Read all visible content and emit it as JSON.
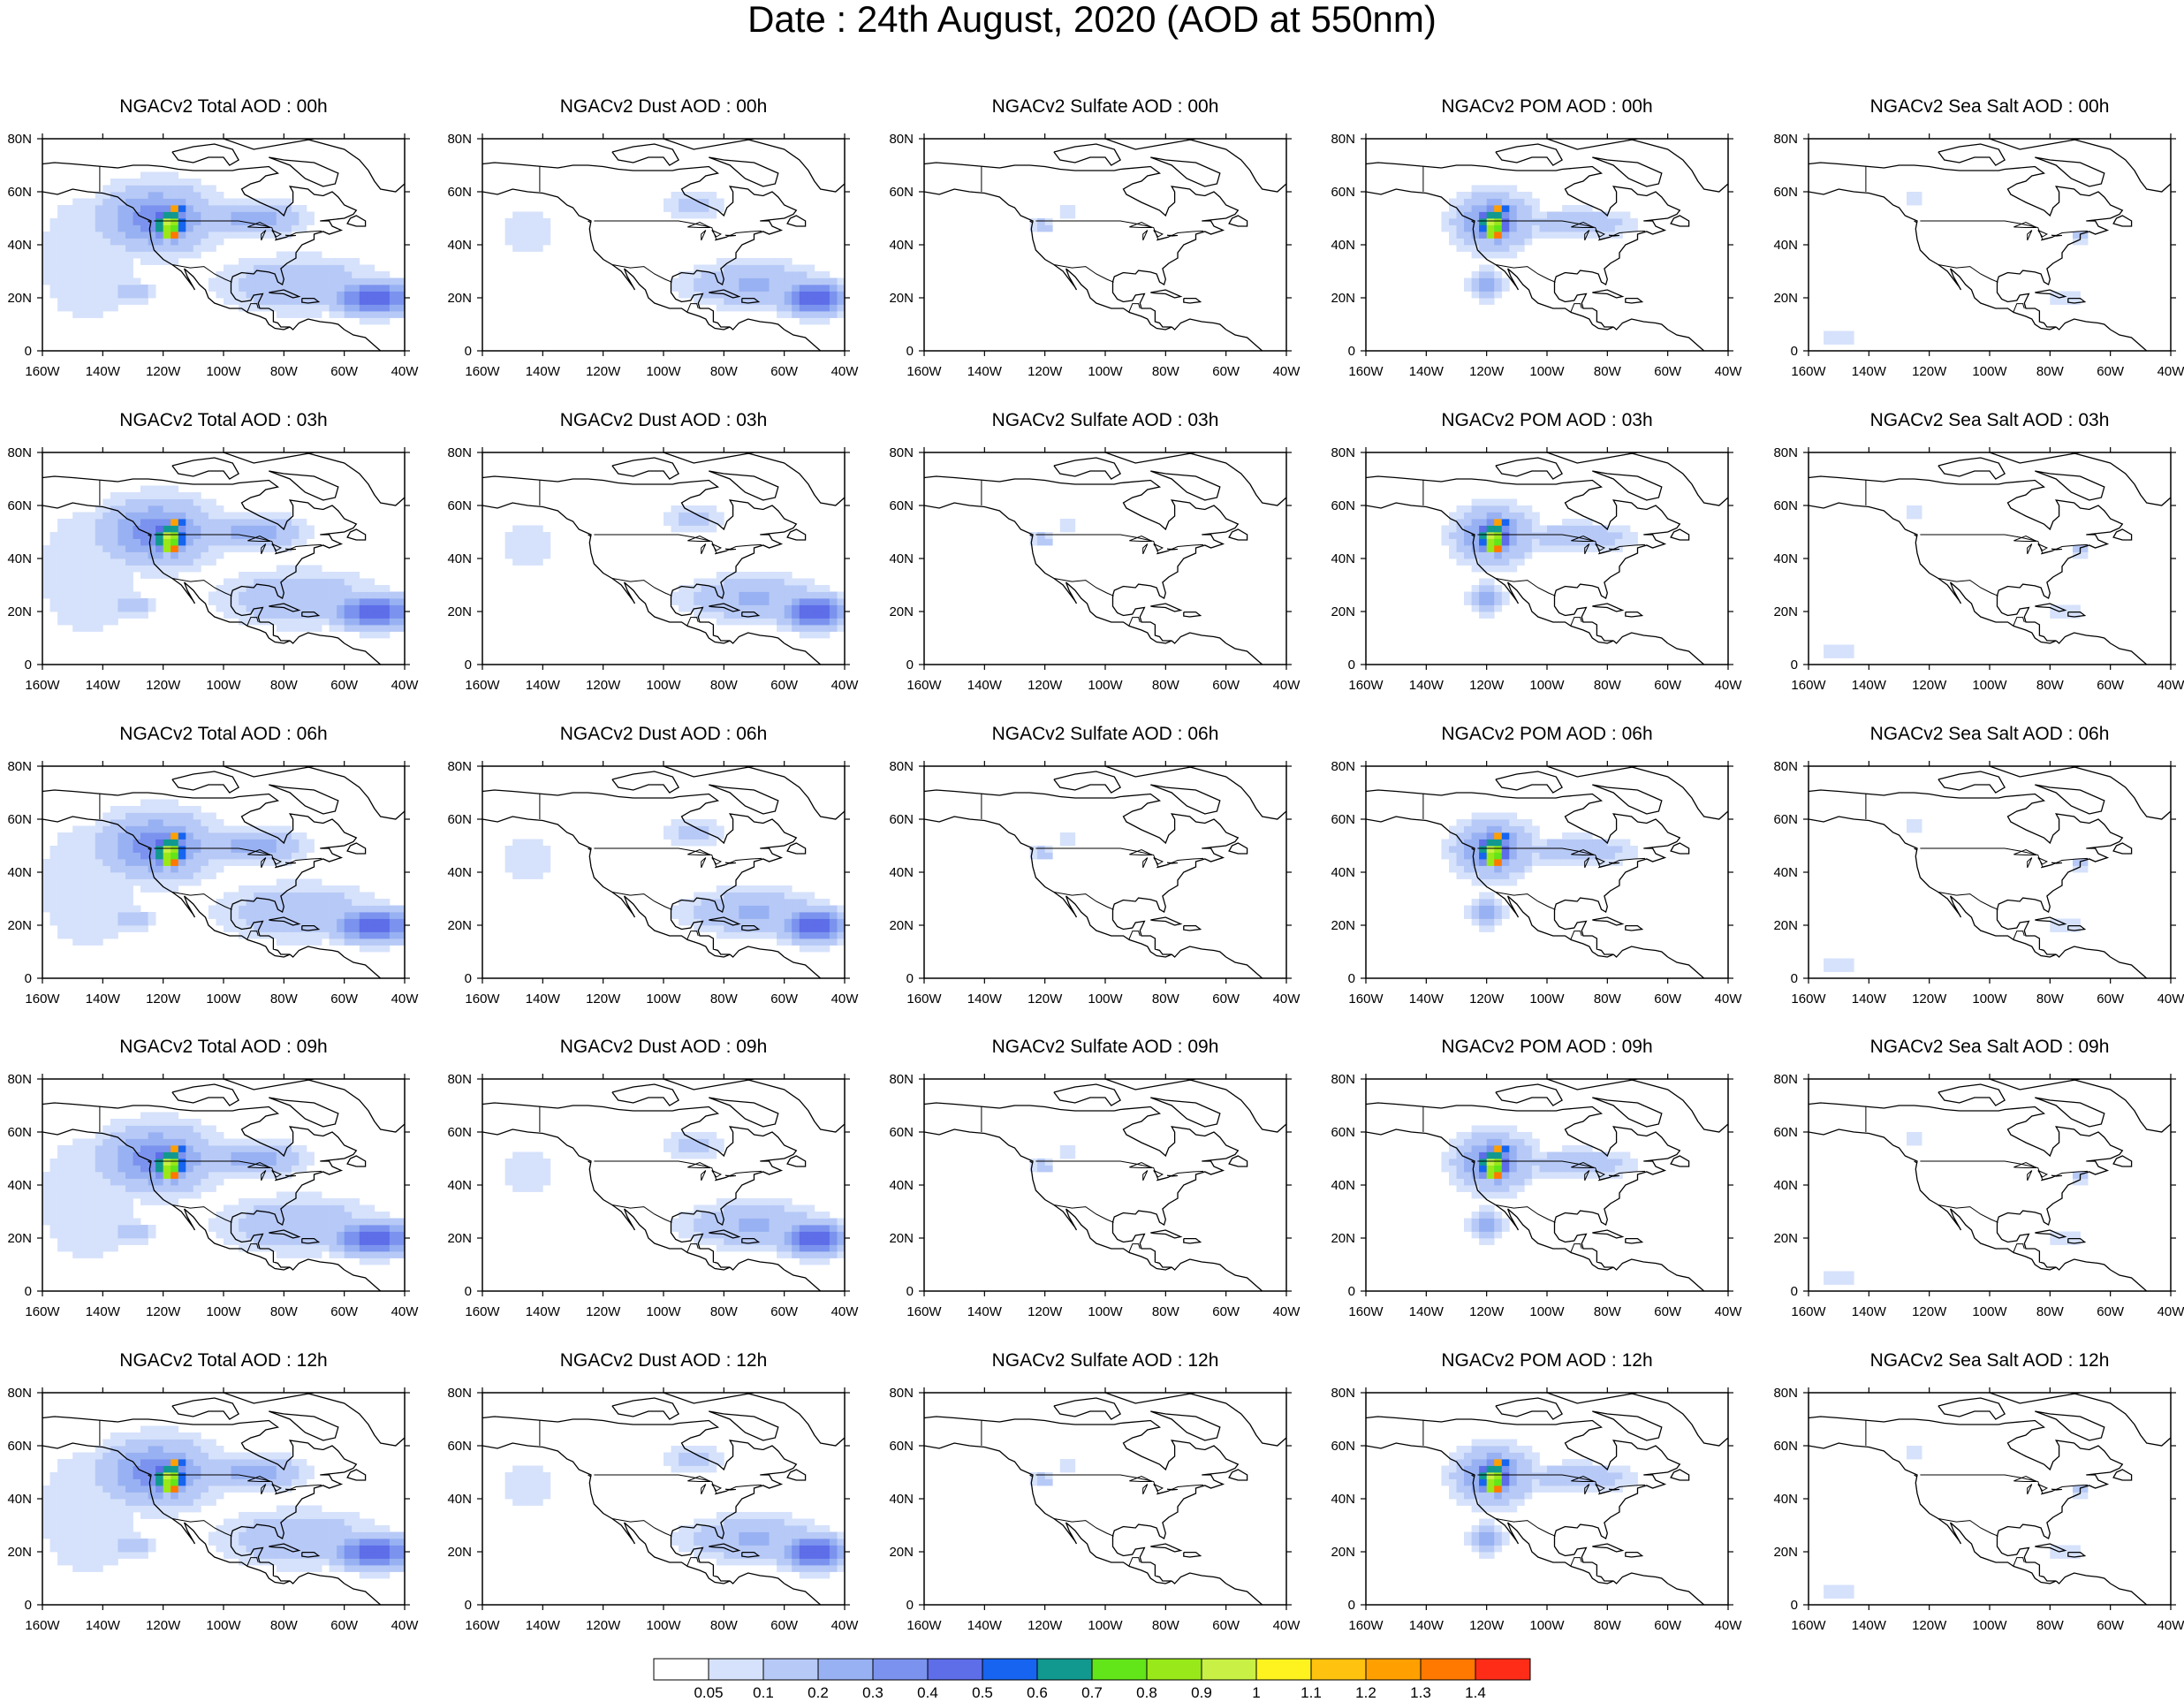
{
  "title": "Date : 24th August, 2020 (AOD at 550nm)",
  "map": {
    "lon_range": [
      -160,
      -40
    ],
    "lat_range": [
      0,
      80
    ],
    "lon_ticks": [
      "160W",
      "140W",
      "120W",
      "100W",
      "80W",
      "60W",
      "40W"
    ],
    "lat_ticks": [
      "0",
      "20N",
      "40N",
      "60N",
      "80N"
    ]
  },
  "panel_titles": [
    [
      "NGACv2 Total AOD : 00h",
      "NGACv2 Dust AOD : 00h",
      "NGACv2 Sulfate AOD : 00h",
      "NGACv2 POM AOD : 00h",
      "NGACv2 Sea Salt AOD : 00h"
    ],
    [
      "NGACv2 Total AOD : 03h",
      "NGACv2 Dust AOD : 03h",
      "NGACv2 Sulfate AOD : 03h",
      "NGACv2 POM AOD : 03h",
      "NGACv2 Sea Salt AOD : 03h"
    ],
    [
      "NGACv2 Total AOD : 06h",
      "NGACv2 Dust AOD : 06h",
      "NGACv2 Sulfate AOD : 06h",
      "NGACv2 POM AOD : 06h",
      "NGACv2 Sea Salt AOD : 06h"
    ],
    [
      "NGACv2 Total AOD : 09h",
      "NGACv2 Dust AOD : 09h",
      "NGACv2 Sulfate AOD : 09h",
      "NGACv2 POM AOD : 09h",
      "NGACv2 Sea Salt  AOD : 09h"
    ],
    [
      "NGACv2 Total AOD  : 12h",
      "NGACv2 Dust AOD : 12h",
      "NGACv2 Sulfate AOD : 12h",
      "NGACv2 POM  AOD : 12h",
      "NGACv2 Sea Salt  AOD : 12h"
    ]
  ],
  "colorbar": {
    "labels": [
      "0.05",
      "0.1",
      "0.2",
      "0.3",
      "0.4",
      "0.5",
      "0.6",
      "0.7",
      "0.8",
      "0.9",
      "1",
      "1.1",
      "1.2",
      "1.3",
      "1.4"
    ],
    "colors": [
      "#ffffff",
      "#d6e2fb",
      "#b7c9f6",
      "#98b1f2",
      "#7b93ee",
      "#5e6de8",
      "#1664f0",
      "#11998f",
      "#62e519",
      "#99e81a",
      "#c8f045",
      "#fff31f",
      "#ffc20f",
      "#ffa000",
      "#ff7800",
      "#ff2d17"
    ]
  },
  "plumes": {
    "total": [
      {
        "lon": -122,
        "lat": 50,
        "v": 0.35,
        "sx": 18,
        "sy": 12
      },
      {
        "lon": -118,
        "lat": 48,
        "v": 0.95,
        "sx": 6,
        "sy": 5
      },
      {
        "lon": -117,
        "lat": 44,
        "v": 1.45,
        "sx": 2.5,
        "sy": 2
      },
      {
        "lon": -116,
        "lat": 53,
        "v": 1.45,
        "sx": 2.5,
        "sy": 2
      },
      {
        "lon": -90,
        "lat": 50,
        "v": 0.25,
        "sx": 16,
        "sy": 6
      },
      {
        "lon": -50,
        "lat": 20,
        "v": 0.5,
        "sx": 14,
        "sy": 6
      },
      {
        "lon": -75,
        "lat": 25,
        "v": 0.2,
        "sx": 25,
        "sy": 10
      },
      {
        "lon": -130,
        "lat": 22,
        "v": 0.2,
        "sx": 6,
        "sy": 4
      },
      {
        "lon": -145,
        "lat": 35,
        "v": 0.1,
        "sx": 18,
        "sy": 28
      }
    ],
    "dust": [
      {
        "lon": -50,
        "lat": 20,
        "v": 0.5,
        "sx": 12,
        "sy": 6
      },
      {
        "lon": -70,
        "lat": 25,
        "v": 0.22,
        "sx": 22,
        "sy": 8
      },
      {
        "lon": -145,
        "lat": 45,
        "v": 0.1,
        "sx": 10,
        "sy": 10
      },
      {
        "lon": -90,
        "lat": 55,
        "v": 0.12,
        "sx": 12,
        "sy": 6
      }
    ],
    "sulfate": [
      {
        "lon": -121,
        "lat": 47,
        "v": 0.15,
        "sx": 4,
        "sy": 3
      },
      {
        "lon": -112,
        "lat": 52,
        "v": 0.1,
        "sx": 3,
        "sy": 3
      }
    ],
    "pom": [
      {
        "lon": -118,
        "lat": 49,
        "v": 0.35,
        "sx": 12,
        "sy": 10
      },
      {
        "lon": -118,
        "lat": 48,
        "v": 0.95,
        "sx": 5,
        "sy": 5
      },
      {
        "lon": -117,
        "lat": 44,
        "v": 1.45,
        "sx": 2.5,
        "sy": 2
      },
      {
        "lon": -116,
        "lat": 53,
        "v": 1.45,
        "sx": 2.5,
        "sy": 2
      },
      {
        "lon": -90,
        "lat": 48,
        "v": 0.2,
        "sx": 18,
        "sy": 5
      },
      {
        "lon": -120,
        "lat": 25,
        "v": 0.25,
        "sx": 6,
        "sy": 5
      }
    ],
    "seasalt": [
      {
        "lon": -70,
        "lat": 43,
        "v": 0.12,
        "sx": 4,
        "sy": 3
      },
      {
        "lon": -75,
        "lat": 20,
        "v": 0.11,
        "sx": 6,
        "sy": 4
      },
      {
        "lon": -150,
        "lat": 5,
        "v": 0.1,
        "sx": 8,
        "sy": 3
      },
      {
        "lon": -125,
        "lat": 58,
        "v": 0.1,
        "sx": 3,
        "sy": 3
      }
    ]
  },
  "coastline": [
    [
      [
        -160,
        60
      ],
      [
        -155,
        59
      ],
      [
        -150,
        61
      ],
      [
        -145,
        60
      ],
      [
        -140,
        59.5
      ],
      [
        -135,
        58
      ],
      [
        -132,
        55
      ],
      [
        -130,
        54
      ],
      [
        -128,
        51
      ],
      [
        -124,
        49
      ],
      [
        -124.5,
        46
      ],
      [
        -124,
        42
      ],
      [
        -123,
        38
      ],
      [
        -120,
        34.5
      ],
      [
        -117,
        32.5
      ],
      [
        -114,
        30
      ],
      [
        -112,
        27
      ],
      [
        -110,
        24
      ],
      [
        -109.5,
        23
      ],
      [
        -112,
        28
      ],
      [
        -113,
        31
      ],
      [
        -110,
        28
      ],
      [
        -108,
        25
      ],
      [
        -106,
        23
      ],
      [
        -105,
        20
      ],
      [
        -103,
        18
      ],
      [
        -98,
        16
      ],
      [
        -94,
        16
      ],
      [
        -92,
        14.5
      ],
      [
        -88,
        13
      ],
      [
        -86,
        12
      ],
      [
        -85,
        10
      ],
      [
        -83,
        8.5
      ],
      [
        -80,
        8
      ],
      [
        -78,
        9
      ]
    ],
    [
      [
        -78,
        9
      ],
      [
        -77,
        8
      ],
      [
        -75,
        10.5
      ],
      [
        -72,
        12
      ],
      [
        -68,
        11
      ],
      [
        -64,
        10.5
      ],
      [
        -62,
        10
      ],
      [
        -60,
        8
      ]
    ],
    [
      [
        -60,
        8
      ],
      [
        -57,
        6
      ],
      [
        -53,
        5
      ],
      [
        -50,
        2
      ],
      [
        -48,
        0
      ]
    ],
    [
      [
        -78,
        9
      ],
      [
        -81,
        9
      ],
      [
        -82,
        10.5
      ],
      [
        -83.5,
        11
      ],
      [
        -83.5,
        15
      ],
      [
        -85,
        16
      ],
      [
        -88,
        16
      ],
      [
        -88.5,
        18
      ],
      [
        -87,
        21.5
      ],
      [
        -90,
        21
      ],
      [
        -91,
        19
      ],
      [
        -94,
        18.5
      ],
      [
        -96,
        19.5
      ],
      [
        -97.5,
        22
      ],
      [
        -97.5,
        26
      ],
      [
        -97,
        28
      ],
      [
        -94,
        29.5
      ],
      [
        -90,
        29
      ],
      [
        -89,
        30.3
      ],
      [
        -85,
        29.7
      ],
      [
        -83,
        29
      ],
      [
        -82,
        26
      ],
      [
        -80.5,
        25
      ],
      [
        -80,
        27
      ],
      [
        -81,
        31
      ],
      [
        -79,
        33
      ],
      [
        -76,
        35
      ],
      [
        -76,
        37
      ],
      [
        -74,
        40
      ],
      [
        -71,
        41.5
      ],
      [
        -70,
        42
      ],
      [
        -70,
        44
      ],
      [
        -67,
        45
      ],
      [
        -65,
        44
      ],
      [
        -61,
        45.5
      ],
      [
        -64,
        47
      ],
      [
        -65,
        49
      ],
      [
        -68,
        49
      ],
      [
        -60,
        50
      ],
      [
        -57,
        51.5
      ],
      [
        -56,
        53
      ],
      [
        -60,
        55
      ],
      [
        -62,
        58
      ],
      [
        -64,
        60
      ],
      [
        -67,
        58.5
      ],
      [
        -70,
        59
      ],
      [
        -72,
        61
      ],
      [
        -78,
        62
      ],
      [
        -77,
        60
      ],
      [
        -77,
        56
      ],
      [
        -79,
        54
      ],
      [
        -80,
        51
      ],
      [
        -82,
        53
      ],
      [
        -88,
        56
      ],
      [
        -93,
        59
      ],
      [
        -94,
        61
      ],
      [
        -91,
        63
      ],
      [
        -88,
        64
      ],
      [
        -86,
        66
      ],
      [
        -82,
        67
      ],
      [
        -85,
        69.5
      ],
      [
        -95,
        68.5
      ],
      [
        -97,
        68
      ],
      [
        -105,
        68
      ],
      [
        -110,
        68
      ],
      [
        -115,
        68.5
      ],
      [
        -120,
        69.5
      ],
      [
        -125,
        70
      ],
      [
        -130,
        70
      ],
      [
        -135,
        69
      ],
      [
        -140,
        69.5
      ],
      [
        -145,
        70
      ],
      [
        -150,
        70.5
      ],
      [
        -156,
        71
      ],
      [
        -160,
        70.5
      ]
    ],
    [
      [
        -85,
        73
      ],
      [
        -80,
        72
      ],
      [
        -70,
        71
      ],
      [
        -62,
        67
      ],
      [
        -63,
        63
      ],
      [
        -67,
        62
      ],
      [
        -73,
        65
      ],
      [
        -78,
        70
      ],
      [
        -85,
        73
      ]
    ],
    [
      [
        -73,
        80
      ],
      [
        -60,
        82
      ],
      [
        -40,
        83
      ]
    ],
    [
      [
        -73,
        80
      ],
      [
        -60,
        76
      ],
      [
        -55,
        72
      ],
      [
        -52,
        68
      ],
      [
        -50,
        64
      ],
      [
        -48,
        61
      ],
      [
        -43,
        60
      ],
      [
        -40,
        63
      ]
    ],
    [
      [
        -85,
        22
      ],
      [
        -80,
        23
      ],
      [
        -75,
        20.5
      ],
      [
        -77,
        20
      ],
      [
        -80,
        21.5
      ],
      [
        -84,
        21.8
      ],
      [
        -85,
        22
      ]
    ],
    [
      [
        -74,
        19.8
      ],
      [
        -70,
        19.8
      ],
      [
        -68.5,
        18.5
      ],
      [
        -72,
        18
      ],
      [
        -74,
        18.3
      ],
      [
        -74,
        19.8
      ]
    ],
    [
      [
        -117,
        75
      ],
      [
        -115,
        72
      ],
      [
        -110,
        71
      ],
      [
        -105,
        73
      ],
      [
        -100,
        73
      ],
      [
        -98,
        70
      ],
      [
        -95,
        72
      ],
      [
        -97,
        76
      ],
      [
        -103,
        78
      ],
      [
        -110,
        77
      ],
      [
        -117,
        75
      ]
    ],
    [
      [
        -100,
        80
      ],
      [
        -90,
        82
      ],
      [
        -75,
        83
      ],
      [
        -65,
        82.5
      ],
      [
        -70,
        80
      ],
      [
        -80,
        78
      ],
      [
        -90,
        76
      ],
      [
        -100,
        80
      ]
    ],
    [
      [
        -125,
        49
      ],
      [
        -124,
        48.3
      ]
    ],
    [
      [
        -56,
        47
      ],
      [
        -53,
        47
      ],
      [
        -53,
        49
      ],
      [
        -56,
        51
      ],
      [
        -58,
        50
      ],
      [
        -59,
        48
      ],
      [
        -56,
        47
      ]
    ]
  ],
  "borders": [
    [
      [
        -123,
        49
      ],
      [
        -95,
        49
      ],
      [
        -90,
        48
      ],
      [
        -84,
        46.5
      ],
      [
        -82.5,
        42
      ],
      [
        -79,
        43
      ],
      [
        -76,
        44.5
      ],
      [
        -71,
        45
      ],
      [
        -67.5,
        45.2
      ]
    ],
    [
      [
        -141,
        60
      ],
      [
        -141,
        69.5
      ]
    ],
    [
      [
        -117,
        32.5
      ],
      [
        -111,
        31.3
      ],
      [
        -106.5,
        31.8
      ],
      [
        -103,
        29
      ],
      [
        -99.5,
        27
      ],
      [
        -97.2,
        25.9
      ]
    ],
    [
      [
        -92.2,
        14.5
      ],
      [
        -91,
        17.8
      ],
      [
        -89,
        17.8
      ],
      [
        -88.5,
        16
      ]
    ]
  ],
  "great_lakes": [
    [
      [
        -92,
        46.7
      ],
      [
        -88,
        48.5
      ],
      [
        -84.5,
        46.5
      ],
      [
        -88,
        46.5
      ],
      [
        -92,
        46.7
      ]
    ],
    [
      [
        -87.5,
        41.7
      ],
      [
        -86,
        45.5
      ],
      [
        -87.5,
        44
      ],
      [
        -87.5,
        41.7
      ]
    ],
    [
      [
        -84,
        45.5
      ],
      [
        -81,
        44
      ],
      [
        -82.5,
        43
      ],
      [
        -84,
        45.5
      ]
    ],
    [
      [
        -83,
        41.7
      ],
      [
        -79,
        42.9
      ],
      [
        -81,
        42.3
      ],
      [
        -83,
        41.7
      ]
    ],
    [
      [
        -79.5,
        43.6
      ],
      [
        -76,
        43.5
      ],
      [
        -78,
        43.3
      ],
      [
        -79.5,
        43.6
      ]
    ]
  ]
}
